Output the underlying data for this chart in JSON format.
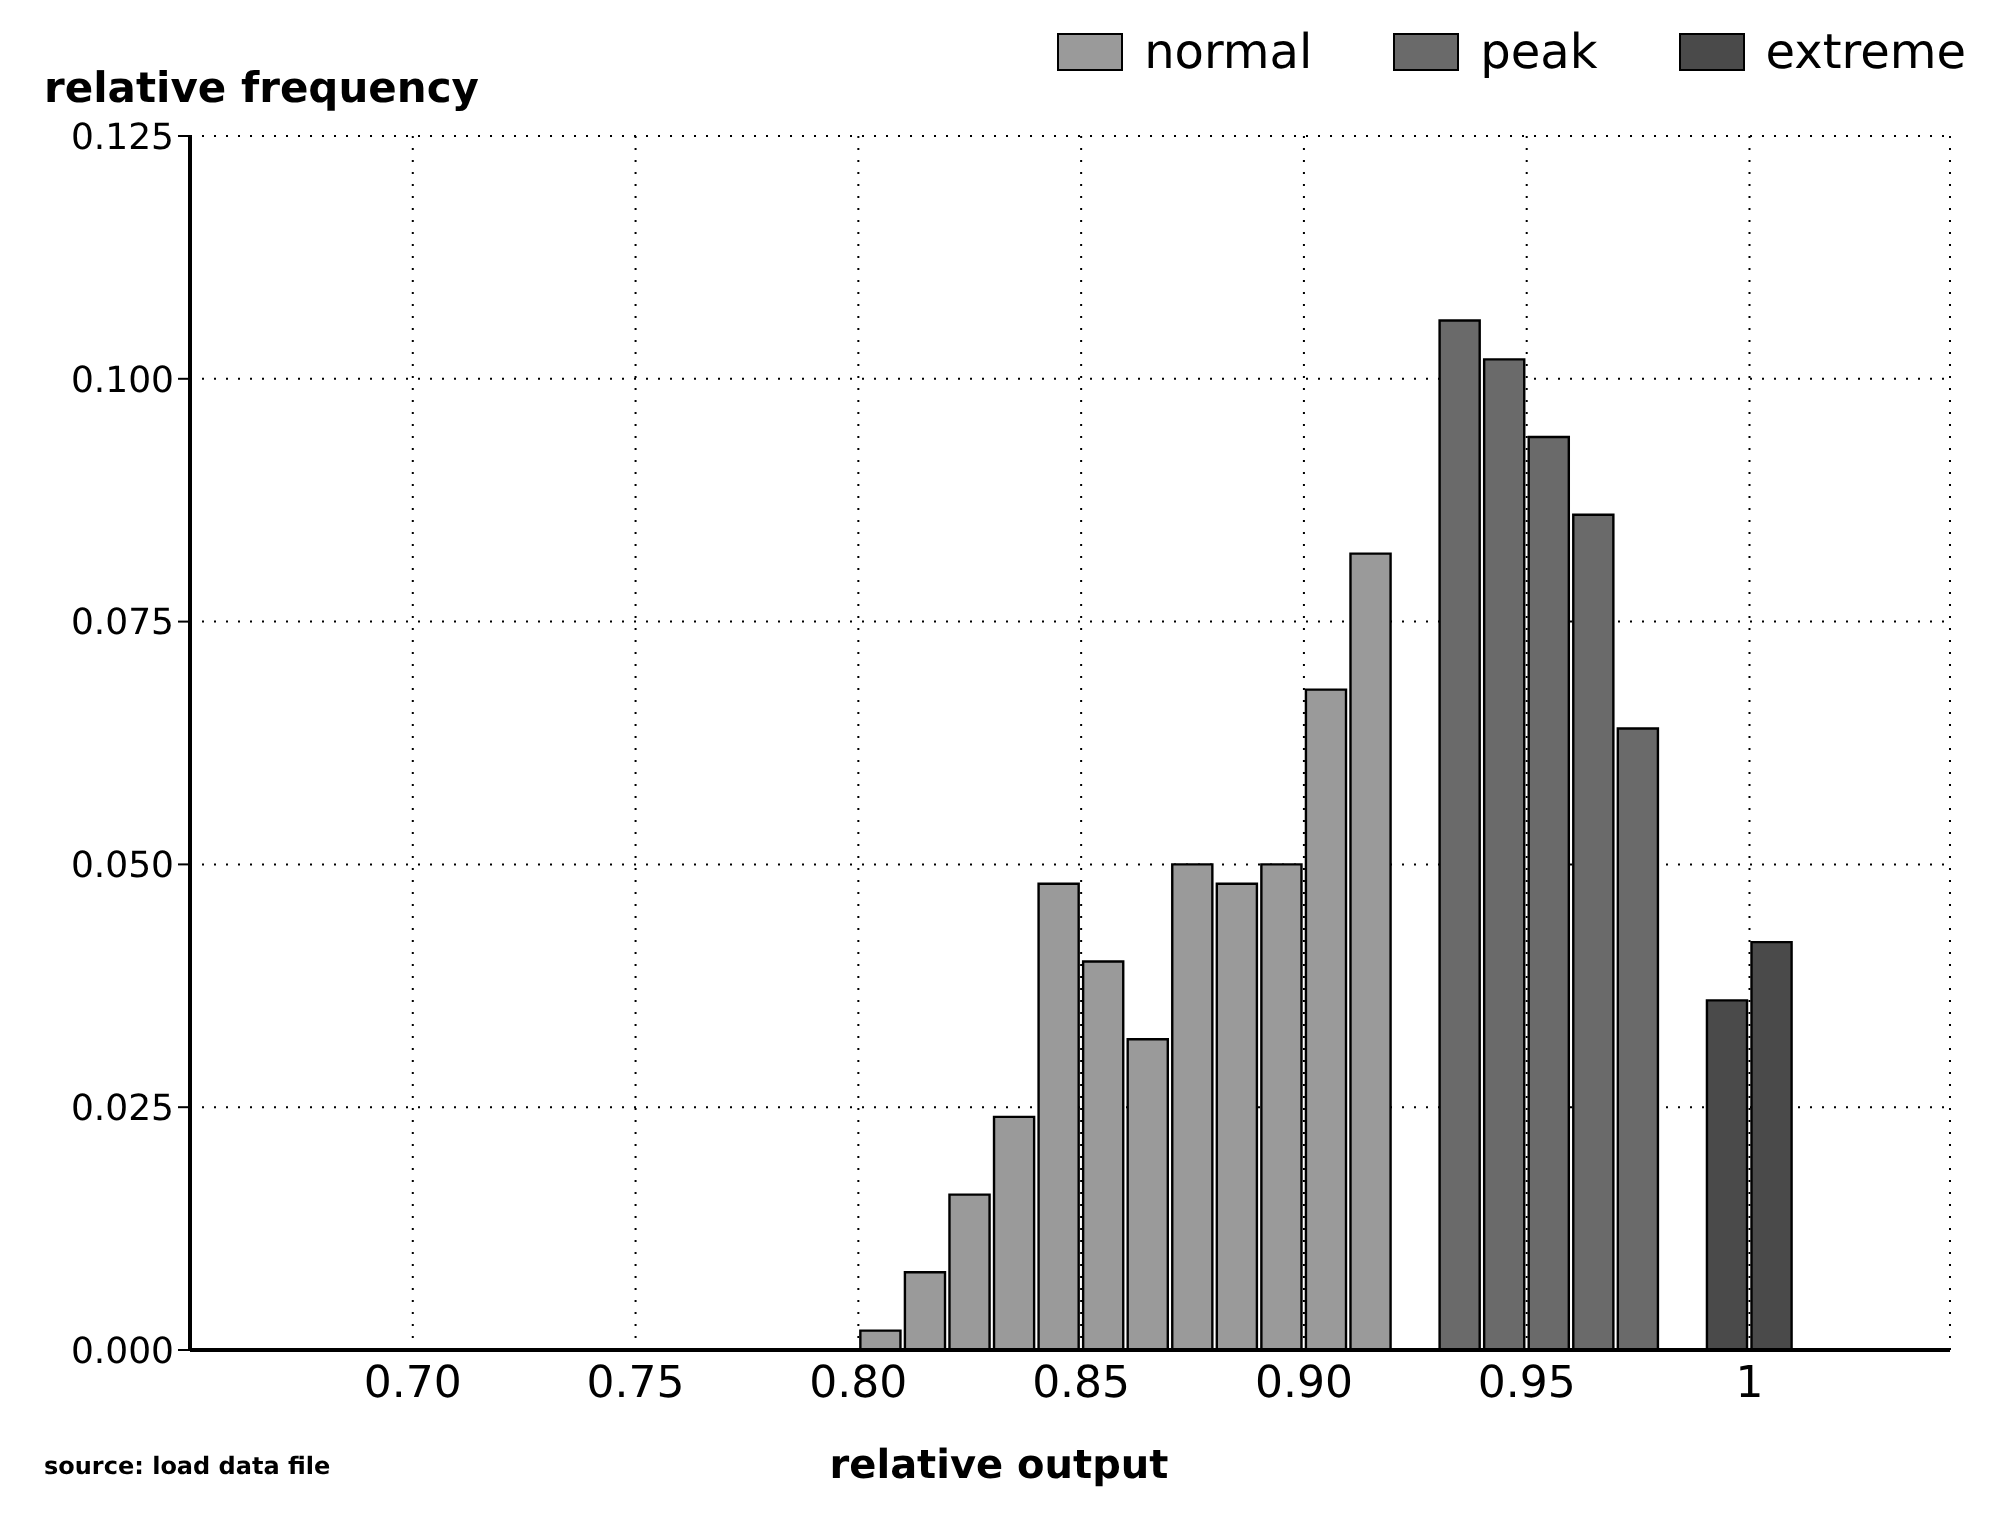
{
  "chart_data": {
    "type": "bar",
    "ylabel": "relative frequency",
    "xlabel": "relative output",
    "annotations": [
      "source: load data file"
    ],
    "xlim": [
      0.65,
      1.045
    ],
    "xticks": [
      {
        "value": 0.7,
        "label": "0.70"
      },
      {
        "value": 0.75,
        "label": "0.75"
      },
      {
        "value": 0.8,
        "label": "0.80"
      },
      {
        "value": 0.85,
        "label": "0.85"
      },
      {
        "value": 0.9,
        "label": "0.90"
      },
      {
        "value": 0.95,
        "label": "0.95"
      },
      1
    ],
    "ylim": [
      0,
      0.125
    ],
    "yticks": [
      {
        "value": 0,
        "label": "0.000"
      },
      {
        "value": 0.025,
        "label": "0.025"
      },
      {
        "value": 0.05,
        "label": "0.050"
      },
      {
        "value": 0.075,
        "label": "0.075"
      },
      {
        "value": 0.1,
        "label": "0.100"
      },
      {
        "value": 0.125,
        "label": "0.125"
      }
    ],
    "grid": true,
    "legend": "top right",
    "series": [
      {
        "name": "normal",
        "color": "#9a9a9a",
        "x": [
          0.805,
          0.815,
          0.825,
          0.835,
          0.845,
          0.855,
          0.865,
          0.875,
          0.885,
          0.895,
          0.905,
          0.915
        ],
        "values": [
          0.002,
          0.008,
          0.016,
          0.024,
          0.048,
          0.04,
          0.032,
          0.05,
          0.048,
          0.05,
          0.068,
          0.082
        ]
      },
      {
        "name": "peak",
        "color": "#6a6a6a",
        "x": [
          0.935,
          0.945,
          0.955,
          0.965,
          0.975
        ],
        "values": [
          0.106,
          0.102,
          0.094,
          0.086,
          0.064
        ]
      },
      {
        "name": "extreme",
        "color": "#4a4a4a",
        "x": [
          0.995,
          1.005
        ],
        "values": [
          0.036,
          0.042
        ]
      }
    ]
  }
}
